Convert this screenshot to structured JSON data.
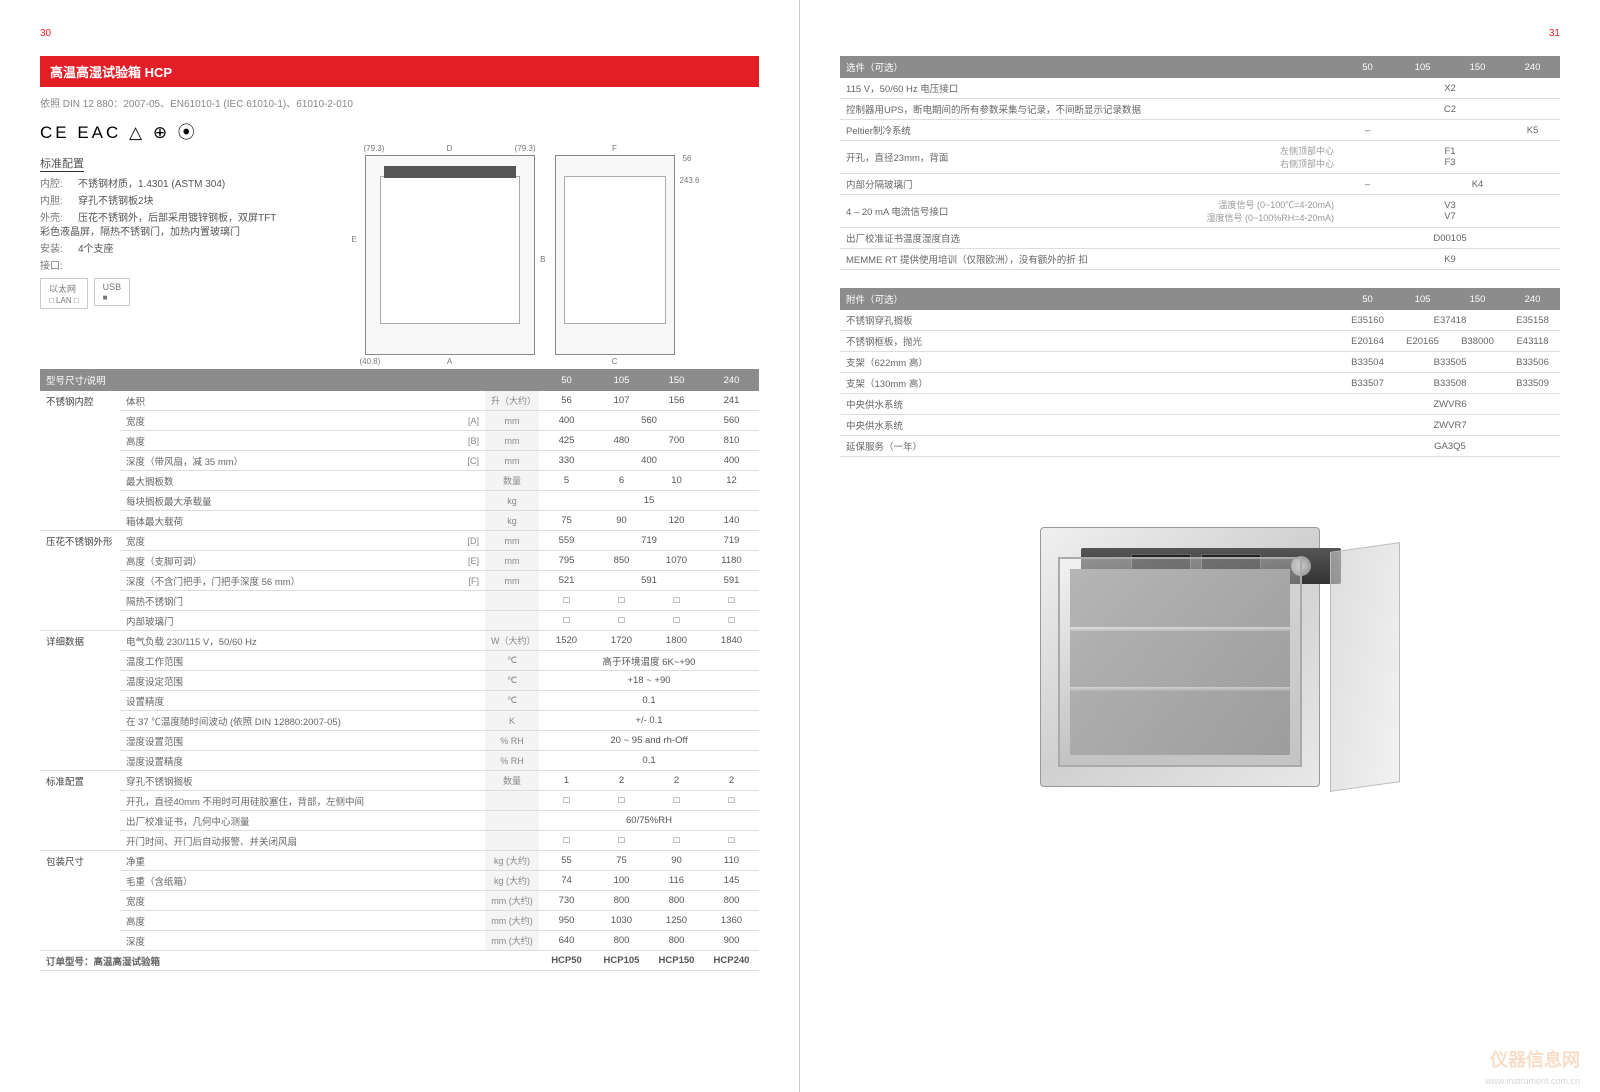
{
  "pages": {
    "left_num": "30",
    "right_num": "31"
  },
  "header": {
    "title": "高温高湿试验箱 HCP",
    "standards": "依照 DIN 12 880：2007-05、EN61010-1 (IEC 61010-1)、61010-2-010",
    "certs": "CE  EAC  △  ⊕  ⦿"
  },
  "config": {
    "title": "标准配置",
    "lines": [
      {
        "lbl": "内腔:",
        "val": "不锈钢材质，1.4301 (ASTM 304)"
      },
      {
        "lbl": "内胆:",
        "val": "穿孔不锈钢板2块"
      },
      {
        "lbl": "外壳:",
        "val": "压花不锈钢外，后部采用镀锌钢板，双屏TFT彩色液晶屏，隔热不锈钢门，加热内置玻璃门"
      },
      {
        "lbl": "安装:",
        "val": "4个支座"
      },
      {
        "lbl": "接口:",
        "val": ""
      }
    ],
    "ports": [
      {
        "t": "以太网",
        "s": "□ LAN □"
      },
      {
        "t": "USB",
        "s": "■"
      }
    ]
  },
  "diagram": {
    "front_dims": [
      "D",
      "(79.3)",
      "(79.3)",
      "A",
      "E",
      "B",
      "(40.8)"
    ],
    "side_dims": [
      "F",
      "C",
      "56",
      "243.6"
    ]
  },
  "spec": {
    "header": {
      "title": "型号尺寸/说明",
      "cols": [
        "50",
        "105",
        "150",
        "240"
      ]
    },
    "order_label": "订单型号：高温高湿试验箱",
    "order_codes": [
      "HCP50",
      "HCP105",
      "HCP150",
      "HCP240"
    ],
    "groups": [
      {
        "sec": "不锈钢内腔",
        "rows": [
          {
            "lbl": "体积",
            "code": "",
            "unit": "升（大约）",
            "vals": [
              "56",
              "107",
              "156",
              "241"
            ]
          },
          {
            "lbl": "宽度",
            "code": "[A]",
            "unit": "mm",
            "vals": [
              "400",
              "560",
              "560",
              "600"
            ],
            "spans": [
              1,
              2,
              0,
              1
            ]
          },
          {
            "lbl": "高度",
            "code": "[B]",
            "unit": "mm",
            "vals": [
              "425",
              "480",
              "700",
              "810"
            ]
          },
          {
            "lbl": "深度（带风扇，减 35 mm）",
            "code": "[C]",
            "unit": "mm",
            "vals": [
              "330",
              "400",
              "400",
              "500"
            ],
            "spans": [
              1,
              2,
              0,
              1
            ]
          },
          {
            "lbl": "最大搁板数",
            "code": "",
            "unit": "数量",
            "vals": [
              "5",
              "6",
              "10",
              "12"
            ]
          },
          {
            "lbl": "每块搁板最大承载量",
            "code": "",
            "unit": "kg",
            "vals": [
              "15",
              "15",
              "15",
              "15"
            ],
            "spans": [
              4,
              0,
              0,
              0
            ]
          },
          {
            "lbl": "箱体最大载荷",
            "code": "",
            "unit": "kg",
            "vals": [
              "75",
              "90",
              "120",
              "140"
            ]
          }
        ]
      },
      {
        "sec": "压花不锈钢外形",
        "rows": [
          {
            "lbl": "宽度",
            "code": "[D]",
            "unit": "mm",
            "vals": [
              "559",
              "719",
              "719",
              "759"
            ],
            "spans": [
              1,
              2,
              0,
              1
            ]
          },
          {
            "lbl": "高度（支脚可调）",
            "code": "[E]",
            "unit": "mm",
            "vals": [
              "795",
              "850",
              "1070",
              "1180"
            ]
          },
          {
            "lbl": "深度（不含门把手，门把手深度 56 mm）",
            "code": "[F]",
            "unit": "mm",
            "vals": [
              "521",
              "591",
              "591",
              "691"
            ],
            "spans": [
              1,
              2,
              0,
              1
            ]
          },
          {
            "lbl": "隔热不锈钢门",
            "code": "",
            "unit": "",
            "vals": [
              "□",
              "□",
              "□",
              "□"
            ]
          },
          {
            "lbl": "内部玻璃门",
            "code": "",
            "unit": "",
            "vals": [
              "□",
              "□",
              "□",
              "□"
            ]
          }
        ]
      },
      {
        "sec": "详细数据",
        "rows": [
          {
            "lbl": "电气负载  230/115 V，50/60 Hz",
            "code": "",
            "unit": "W（大约）",
            "vals": [
              "1520",
              "1720",
              "1800",
              "1840"
            ]
          },
          {
            "lbl": "温度工作范围",
            "code": "",
            "unit": "℃",
            "vals": [
              "高于环境温度 6K~+90"
            ],
            "spans": [
              4,
              0,
              0,
              0
            ]
          },
          {
            "lbl": "温度设定范围",
            "code": "",
            "unit": "℃",
            "vals": [
              "+18 ~ +90"
            ],
            "spans": [
              4,
              0,
              0,
              0
            ]
          },
          {
            "lbl": "设置精度",
            "code": "",
            "unit": "℃",
            "vals": [
              "0.1"
            ],
            "spans": [
              4,
              0,
              0,
              0
            ]
          },
          {
            "lbl": "在 37 ℃温度随时间波动 (依照  DIN 12880:2007-05)",
            "code": "",
            "unit": "K",
            "vals": [
              "+/- 0.1"
            ],
            "spans": [
              4,
              0,
              0,
              0
            ]
          },
          {
            "lbl": "湿度设置范围",
            "code": "",
            "unit": "% RH",
            "vals": [
              "20 ~ 95 and rh-Off"
            ],
            "spans": [
              4,
              0,
              0,
              0
            ]
          },
          {
            "lbl": "湿度设置精度",
            "code": "",
            "unit": "% RH",
            "vals": [
              "0.1"
            ],
            "spans": [
              4,
              0,
              0,
              0
            ]
          }
        ]
      },
      {
        "sec": "标准配置",
        "rows": [
          {
            "lbl": "穿孔不锈钢搁板",
            "code": "",
            "unit": "数量",
            "vals": [
              "1",
              "2",
              "2",
              "2"
            ]
          },
          {
            "lbl": "开孔，直径40mm 不用时可用硅胶塞住，背部，左侧中间",
            "code": "",
            "unit": "",
            "vals": [
              "□",
              "□",
              "□",
              "□"
            ]
          },
          {
            "lbl": "出厂校准证书，几何中心测量",
            "code": "",
            "unit": "",
            "vals": [
              "60/75%RH"
            ],
            "spans": [
              4,
              0,
              0,
              0
            ]
          },
          {
            "lbl": "开门时间、开门后自动报警、并关闭风扇",
            "code": "",
            "unit": "",
            "vals": [
              "□",
              "□",
              "□",
              "□"
            ]
          }
        ]
      },
      {
        "sec": "包装尺寸",
        "rows": [
          {
            "lbl": "净重",
            "code": "",
            "unit": "kg (大约)",
            "vals": [
              "55",
              "75",
              "90",
              "110"
            ]
          },
          {
            "lbl": "毛重（含纸箱）",
            "code": "",
            "unit": "kg (大约)",
            "vals": [
              "74",
              "100",
              "116",
              "145"
            ]
          },
          {
            "lbl": "宽度",
            "code": "",
            "unit": "mm (大约)",
            "vals": [
              "730",
              "800",
              "800",
              "800"
            ]
          },
          {
            "lbl": "高度",
            "code": "",
            "unit": "mm (大约)",
            "vals": [
              "950",
              "1030",
              "1250",
              "1360"
            ]
          },
          {
            "lbl": "深度",
            "code": "",
            "unit": "mm (大约)",
            "vals": [
              "640",
              "800",
              "800",
              "900"
            ]
          }
        ]
      }
    ]
  },
  "options": {
    "title": "选件（可选）",
    "cols": [
      "50",
      "105",
      "150",
      "240"
    ],
    "rows": [
      {
        "lbl": "115 V，50/60 Hz 电压接口",
        "sub": "",
        "vals": [
          "X2"
        ],
        "spans": [
          4
        ]
      },
      {
        "lbl": "控制器用UPS，断电期间的所有参数采集与记录，不间断显示记录数据",
        "sub": "",
        "vals": [
          "C2"
        ],
        "spans": [
          4
        ]
      },
      {
        "lbl": "Peltier制冷系统",
        "sub": "",
        "vals": [
          "–",
          "",
          "K5"
        ],
        "spans": [
          1,
          2,
          1
        ]
      },
      {
        "lbl": "开孔，直径23mm，背面",
        "sub": "左侧顶部中心\n右侧顶部中心",
        "vals": [
          "F1\nF3"
        ],
        "spans": [
          4
        ]
      },
      {
        "lbl": "内部分隔玻璃门",
        "sub": "",
        "vals": [
          "–",
          "K4"
        ],
        "spans": [
          1,
          3
        ]
      },
      {
        "lbl": "4 – 20 mA 电流信号接口",
        "sub": "温度信号 (0~100℃=4-20mA)\n湿度信号 (0~100%RH=4-20mA)",
        "vals": [
          "V3\nV7"
        ],
        "spans": [
          4
        ]
      },
      {
        "lbl": "出厂校准证书温度湿度自选",
        "sub": "",
        "vals": [
          "D00105"
        ],
        "spans": [
          4
        ]
      },
      {
        "lbl": "MEMME RT 提供使用培训（仅限欧洲），没有额外的折 扣",
        "sub": "",
        "vals": [
          "K9"
        ],
        "spans": [
          4
        ]
      }
    ]
  },
  "accessories": {
    "title": "附件（可选）",
    "cols": [
      "50",
      "105",
      "150",
      "240"
    ],
    "rows": [
      {
        "lbl": "不锈钢穿孔搁板",
        "vals": [
          "E35160",
          "E37418",
          "",
          "E35158"
        ],
        "spans": [
          1,
          2,
          0,
          1
        ]
      },
      {
        "lbl": "不锈钢框板，抛光",
        "vals": [
          "E20164",
          "E20165",
          "B38000",
          "E43118"
        ]
      },
      {
        "lbl": "支架（622mm 高）",
        "vals": [
          "B33504",
          "B33505",
          "",
          "B33506"
        ],
        "spans": [
          1,
          2,
          0,
          1
        ]
      },
      {
        "lbl": "支架（130mm 高）",
        "vals": [
          "B33507",
          "B33508",
          "",
          "B33509"
        ],
        "spans": [
          1,
          2,
          0,
          1
        ]
      },
      {
        "lbl": "中央供水系统",
        "vals": [
          "ZWVR6"
        ],
        "spans": [
          4
        ]
      },
      {
        "lbl": "中央供水系统",
        "vals": [
          "ZWVR7"
        ],
        "spans": [
          4
        ]
      },
      {
        "lbl": "延保服务（一年）",
        "vals": [
          "GA3Q5"
        ],
        "spans": [
          4
        ]
      }
    ]
  },
  "watermark": {
    "main": "仪器信息网",
    "sub": "www.instrument.com.cn"
  }
}
